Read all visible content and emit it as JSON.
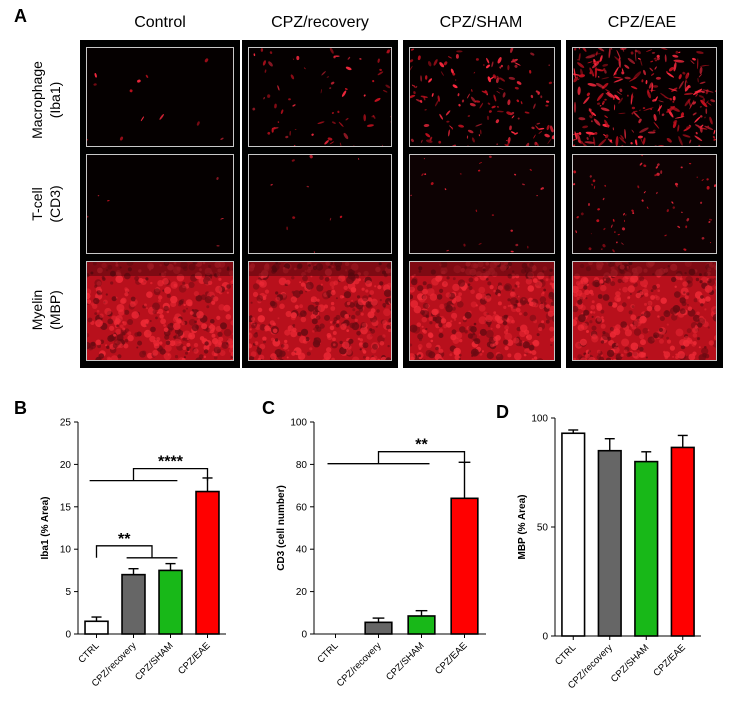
{
  "panelA": {
    "letter": "A",
    "columns": [
      "Control",
      "CPZ/recovery",
      "CPZ/SHAM",
      "CPZ/EAE"
    ],
    "rows": [
      {
        "line1": "Macrophage",
        "line2": "(Iba1)"
      },
      {
        "line1": "T-cell",
        "line2": "(CD3)"
      },
      {
        "line1": "Myelin",
        "line2": "(MBP)"
      }
    ],
    "stain_color": "#e8202a"
  },
  "charts": [
    {
      "letter": "B",
      "chart_data": {
        "type": "bar",
        "categories": [
          "CTRL",
          "CPZ/recovery",
          "CPZ/SHAM",
          "CPZ/EAE"
        ],
        "values": [
          1.5,
          7.0,
          7.5,
          16.8
        ],
        "errors": [
          0.5,
          0.7,
          0.8,
          1.6
        ],
        "colors": [
          "#ffffff",
          "#666666",
          "#18b818",
          "#ff0000"
        ],
        "ylabel": "Iba1 (% Area)",
        "ylim": [
          0,
          25
        ],
        "yticks": [
          0,
          5,
          10,
          15,
          20,
          25
        ],
        "significance": [
          {
            "label": "**",
            "from": 0,
            "to": [
              1,
              2
            ],
            "level": 10.4
          },
          {
            "label": "****",
            "from": [
              0,
              1,
              2
            ],
            "to": 3,
            "level": 19.5
          }
        ]
      }
    },
    {
      "letter": "C",
      "chart_data": {
        "type": "bar",
        "categories": [
          "CTRL",
          "CPZ/recovery",
          "CPZ/SHAM",
          "CPZ/EAE"
        ],
        "values": [
          0,
          5.5,
          8.5,
          64
        ],
        "errors": [
          0,
          2.0,
          2.5,
          17
        ],
        "colors": [
          "#ffffff",
          "#666666",
          "#18b818",
          "#ff0000"
        ],
        "ylabel": "CD3 (cell number)",
        "ylim": [
          0,
          100
        ],
        "yticks": [
          0,
          20,
          40,
          60,
          80,
          100
        ],
        "significance": [
          {
            "label": "**",
            "from": [
              0,
              1,
              2
            ],
            "to": 3,
            "level": 86
          }
        ]
      }
    },
    {
      "letter": "D",
      "chart_data": {
        "type": "bar",
        "categories": [
          "CTRL",
          "CPZ/recovery",
          "CPZ/SHAM",
          "CPZ/EAE"
        ],
        "values": [
          93,
          85,
          80,
          86.5
        ],
        "errors": [
          1.5,
          5.5,
          4.5,
          5.5
        ],
        "colors": [
          "#ffffff",
          "#666666",
          "#18b818",
          "#ff0000"
        ],
        "ylabel": "MBP (% Area)",
        "ylim": [
          0,
          100
        ],
        "yticks": [
          0,
          50,
          100
        ],
        "significance": []
      }
    }
  ]
}
